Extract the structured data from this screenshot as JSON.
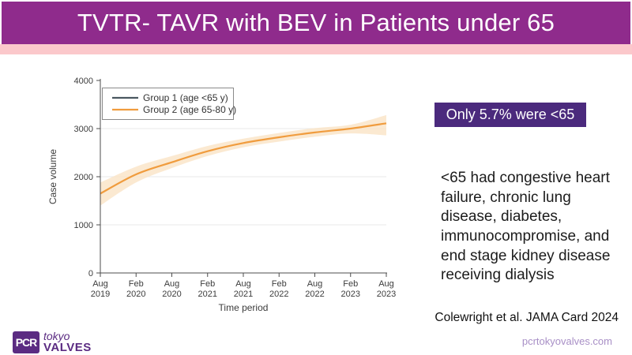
{
  "slide": {
    "title": "TVTR- TAVR with BEV in Patients under 65",
    "badge": "Only 5.7% were <65",
    "body_text": "<65 had congestive heart failure, chronic lung disease, diabetes, immunocompromise, and end stage kidney disease receiving dialysis",
    "citation": "Colewright et al. JAMA Card 2024",
    "website": "pcrtokyovalves.com"
  },
  "logo": {
    "icon_text": "PCR",
    "line1": "tokyo",
    "line2": "VALVES"
  },
  "colors": {
    "header_purple": "#8f2b8c",
    "header_pink": "#fbc8cb",
    "badge_purple": "#4b2a7d",
    "logo_purple": "#5b2b82",
    "website_purple": "#a88fc6",
    "axis_gray": "#4c4c4c",
    "grid_gray": "#e8e8e8",
    "band_orange": "#fae3c6",
    "line_orange": "#f09c3e",
    "line_slate": "#4a5760"
  },
  "chart_data": {
    "type": "line",
    "title": "",
    "xlabel": "Time period",
    "ylabel": "Case volume",
    "ylim": [
      0,
      4000
    ],
    "y_ticks": [
      0,
      1000,
      2000,
      3000,
      4000
    ],
    "grid": "horizontal",
    "legend_position": "top-left",
    "x_tick_labels": [
      [
        "Aug",
        "2019"
      ],
      [
        "Feb",
        "2020"
      ],
      [
        "Aug",
        "2020"
      ],
      [
        "Feb",
        "2021"
      ],
      [
        "Aug",
        "2021"
      ],
      [
        "Feb",
        "2022"
      ],
      [
        "Aug",
        "2022"
      ],
      [
        "Feb",
        "2023"
      ],
      [
        "Aug",
        "2023"
      ]
    ],
    "legend": [
      {
        "label": "Group 1 (age <65 y)",
        "color": "#4a5760"
      },
      {
        "label": "Group 2 (age 65-80 y)",
        "color": "#f09c3e"
      }
    ],
    "series": [
      {
        "name": "Group 2 (age 65-80 y)",
        "color": "#f09c3e",
        "values": [
          1650,
          2050,
          2300,
          2530,
          2700,
          2820,
          2920,
          3000,
          3110
        ],
        "band_lower": [
          1400,
          1880,
          2180,
          2430,
          2610,
          2730,
          2830,
          2900,
          2860
        ],
        "band_upper": [
          1880,
          2210,
          2430,
          2640,
          2790,
          2910,
          3010,
          3080,
          3280
        ]
      }
    ],
    "note": "Group 1 line not visible within plotted range"
  }
}
